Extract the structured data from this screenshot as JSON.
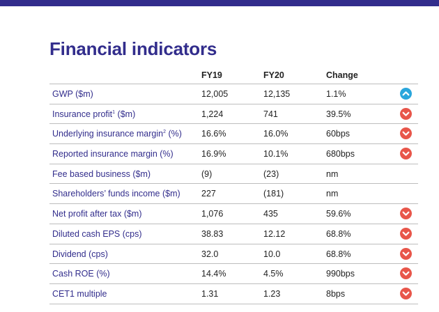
{
  "title": "Financial indicators",
  "headers": {
    "fy19": "FY19",
    "fy20": "FY20",
    "change": "Change"
  },
  "rows": [
    {
      "label": "GWP ($m)",
      "sup": "",
      "label_suffix": "",
      "fy19": "12,005",
      "fy20": "12,135",
      "change": "1.1%",
      "icon": "up-arrow-icon"
    },
    {
      "label": "Insurance profit",
      "sup": "1",
      "label_suffix": " ($m)",
      "fy19": "1,224",
      "fy20": "741",
      "change": "39.5%",
      "icon": "down-arrow-icon"
    },
    {
      "label": "Underlying insurance margin",
      "sup": "2",
      "label_suffix": " (%)",
      "fy19": "16.6%",
      "fy20": "16.0%",
      "change": "60bps",
      "icon": "down-arrow-icon"
    },
    {
      "label": "Reported insurance margin (%)",
      "sup": "",
      "label_suffix": "",
      "fy19": "16.9%",
      "fy20": "10.1%",
      "change": "680bps",
      "icon": "down-arrow-icon"
    },
    {
      "label": "Fee based business ($m)",
      "sup": "",
      "label_suffix": "",
      "fy19": "(9)",
      "fy20": "(23)",
      "change": "nm",
      "icon": ""
    },
    {
      "label": "Shareholders’ funds income ($m)",
      "sup": "",
      "label_suffix": "",
      "fy19": "227",
      "fy20": "(181)",
      "change": "nm",
      "icon": ""
    },
    {
      "label": "Net profit after tax ($m)",
      "sup": "",
      "label_suffix": "",
      "fy19": "1,076",
      "fy20": "435",
      "change": "59.6%",
      "icon": "down-arrow-icon"
    },
    {
      "label": "Diluted cash EPS (cps)",
      "sup": "",
      "label_suffix": "",
      "fy19": "38.83",
      "fy20": "12.12",
      "change": "68.8%",
      "icon": "down-arrow-icon"
    },
    {
      "label": "Dividend (cps)",
      "sup": "",
      "label_suffix": "",
      "fy19": "32.0",
      "fy20": "10.0",
      "change": "68.8%",
      "icon": "down-arrow-icon"
    },
    {
      "label": "Cash ROE (%)",
      "sup": "",
      "label_suffix": "",
      "fy19": "14.4%",
      "fy20": "4.5%",
      "change": "990bps",
      "icon": "down-arrow-icon"
    },
    {
      "label": "CET1 multiple",
      "sup": "",
      "label_suffix": "",
      "fy19": "1.31",
      "fy20": "1.23",
      "change": "8bps",
      "icon": "down-arrow-icon"
    }
  ],
  "colors": {
    "brand": "#322d8c",
    "up": "#2aa6dc",
    "down": "#e8564a",
    "rule": "#bdbdbd"
  }
}
